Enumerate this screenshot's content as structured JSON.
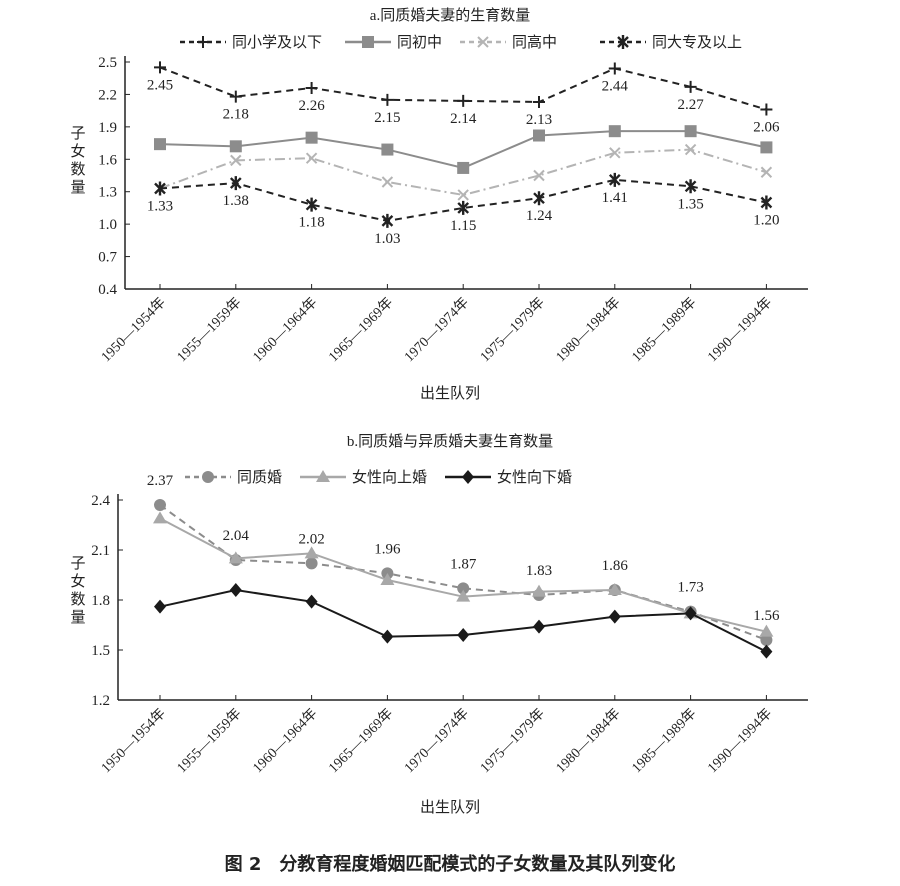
{
  "caption": "图 2　分教育程度婚姻匹配模式的子女数量及其队列变化",
  "chart_data": [
    {
      "type": "line",
      "title": "a.同质婚夫妻的生育数量",
      "xlabel": "出生队列",
      "ylabel": "子女数量",
      "ylim": [
        0.4,
        2.5
      ],
      "yticks": [
        0.4,
        0.7,
        1.0,
        1.3,
        1.6,
        1.9,
        2.2,
        2.5
      ],
      "yticklabels": [
        "0.4",
        "0.7",
        "1.0",
        "1.3",
        "1.6",
        "1.9",
        "2.2",
        "2.5"
      ],
      "categories": [
        "1950—1954年",
        "1955—1959年",
        "1960—1964年",
        "1965—1969年",
        "1970—1974年",
        "1975—1979年",
        "1980—1984年",
        "1985—1989年",
        "1990—1994年"
      ],
      "legend": "top",
      "series": [
        {
          "name": "同小学及以下",
          "marker": "plus",
          "color": "#222222",
          "dash": "dash",
          "labels": "below",
          "labelText": [
            "2.45",
            "2.18",
            "2.26",
            "2.15",
            "2.14",
            "2.13",
            "2.44",
            "2.27",
            "2.06"
          ],
          "values": [
            2.45,
            2.18,
            2.26,
            2.15,
            2.14,
            2.13,
            2.44,
            2.27,
            2.06
          ]
        },
        {
          "name": "同初中",
          "marker": "square",
          "color": "#8c8c8c",
          "dash": "solid",
          "values": [
            1.74,
            1.72,
            1.8,
            1.69,
            1.52,
            1.82,
            1.86,
            1.86,
            1.71
          ]
        },
        {
          "name": "同高中",
          "marker": "x",
          "color": "#b4b4b4",
          "dash": "dashdot",
          "values": [
            1.33,
            1.59,
            1.61,
            1.39,
            1.27,
            1.45,
            1.66,
            1.69,
            1.48
          ]
        },
        {
          "name": "同大专及以上",
          "marker": "asterisk",
          "color": "#222222",
          "dash": "dash",
          "labels": "below",
          "labelText": [
            "1.33",
            "1.38",
            "1.18",
            "1.03",
            "1.15",
            "1.24",
            "1.41",
            "1.35",
            "1.20"
          ],
          "values": [
            1.33,
            1.38,
            1.18,
            1.03,
            1.15,
            1.24,
            1.41,
            1.35,
            1.2
          ]
        }
      ]
    },
    {
      "type": "line",
      "title": "b.同质婚与异质婚夫妻生育数量",
      "xlabel": "出生队列",
      "ylabel": "子女数量",
      "ylim": [
        1.2,
        2.4
      ],
      "yticks": [
        1.2,
        1.5,
        1.8,
        2.1,
        2.4
      ],
      "yticklabels": [
        "1.2",
        "1.5",
        "1.8",
        "2.1",
        "2.4"
      ],
      "categories": [
        "1950—1954年",
        "1955—1959年",
        "1960—1964年",
        "1965—1969年",
        "1970—1974年",
        "1975—1979年",
        "1980—1984年",
        "1985—1989年",
        "1990—1994年"
      ],
      "legend": "top",
      "series": [
        {
          "name": "同质婚",
          "marker": "circle",
          "color": "#8c8c8c",
          "dash": "dash",
          "labels": "above",
          "labelText": [
            "2.37",
            "2.04",
            "2.02",
            "1.96",
            "1.87",
            "1.83",
            "1.86",
            "1.73",
            "1.56"
          ],
          "values": [
            2.37,
            2.04,
            2.02,
            1.96,
            1.87,
            1.83,
            1.86,
            1.73,
            1.56
          ]
        },
        {
          "name": "女性向上婚",
          "marker": "triangle",
          "color": "#a8a8a8",
          "dash": "solid",
          "values": [
            2.29,
            2.05,
            2.08,
            1.92,
            1.82,
            1.85,
            1.86,
            1.72,
            1.61
          ]
        },
        {
          "name": "女性向下婚",
          "marker": "diamond",
          "color": "#1a1a1a",
          "dash": "solid",
          "values": [
            1.76,
            1.86,
            1.79,
            1.58,
            1.59,
            1.64,
            1.7,
            1.72,
            1.49
          ]
        }
      ]
    }
  ]
}
